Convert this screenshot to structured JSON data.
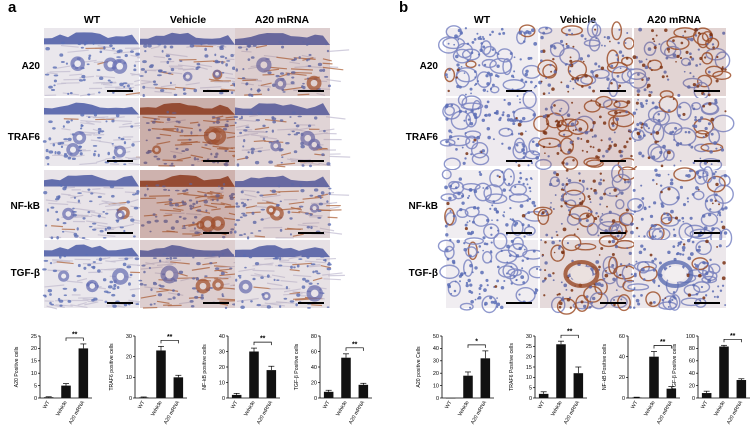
{
  "panel_a": {
    "letter": "a",
    "columns": [
      "WT",
      "Vehicle",
      "A20 mRNA"
    ],
    "rows": [
      "A20",
      "TRAF6",
      "NF-kB",
      "TGF-β"
    ]
  },
  "panel_b": {
    "letter": "b",
    "columns": [
      "WT",
      "Vehicle",
      "A20 mRNA"
    ],
    "rows": [
      "A20",
      "TRAF6",
      "NF-kB",
      "TGF-β"
    ]
  },
  "colors": {
    "hematoxylin": "#5a6fb8",
    "dab": "#8b3a1e",
    "bar": "#111111"
  },
  "chart_data": [
    {
      "type": "bar",
      "categories": [
        "WT",
        "Vehicle",
        "A20 mRNA"
      ],
      "values": [
        0.3,
        5,
        20
      ],
      "errors": [
        0.2,
        0.8,
        1.8
      ],
      "ylabel": "A20 Positive cells",
      "ylim": [
        0,
        25
      ],
      "ticks": [
        0,
        5,
        10,
        15,
        20,
        25
      ],
      "sig": "**"
    },
    {
      "type": "bar",
      "categories": [
        "WT",
        "Vehicle",
        "A20 mRNA"
      ],
      "values": [
        0.3,
        23,
        10
      ],
      "errors": [
        0.2,
        2.0,
        1.0
      ],
      "ylabel": "TRAF6 positive cells",
      "ylim": [
        0,
        30
      ],
      "ticks": [
        0,
        10,
        20,
        30
      ],
      "sig": "**"
    },
    {
      "type": "bar",
      "categories": [
        "WT",
        "Vehicle",
        "A20 mRNA"
      ],
      "values": [
        2,
        30,
        18
      ],
      "errors": [
        1,
        2.2,
        2.5
      ],
      "ylabel": "NF-kB positive cells",
      "ylim": [
        0,
        40
      ],
      "ticks": [
        0,
        10,
        20,
        30,
        40
      ],
      "sig": "**"
    },
    {
      "type": "bar",
      "categories": [
        "WT",
        "Vehicle",
        "A20 mRNA"
      ],
      "values": [
        8,
        52,
        17
      ],
      "errors": [
        2,
        5,
        2
      ],
      "ylabel": "TGF-β Positive cells",
      "ylim": [
        0,
        80
      ],
      "ticks": [
        0,
        20,
        40,
        60,
        80
      ],
      "sig": "**"
    },
    {
      "type": "bar",
      "categories": [
        "WT",
        "Vehicle",
        "A20 mRNA"
      ],
      "values": [
        0,
        18,
        32
      ],
      "errors": [
        0,
        3,
        6
      ],
      "ylabel": "A20 positive Cells",
      "ylim": [
        0,
        50
      ],
      "ticks": [
        0,
        10,
        20,
        30,
        40,
        50
      ],
      "sig": "*"
    },
    {
      "type": "bar",
      "categories": [
        "WT",
        "Vehicle",
        "A20 mRNA"
      ],
      "values": [
        2,
        26,
        12
      ],
      "errors": [
        1,
        1.5,
        3
      ],
      "ylabel": "TRAF6 Positive cells",
      "ylim": [
        0,
        30
      ],
      "ticks": [
        0,
        5,
        10,
        15,
        20,
        25,
        30
      ],
      "sig": "**"
    },
    {
      "type": "bar",
      "categories": [
        "WT",
        "Vehicle",
        "A20 mRNA"
      ],
      "values": [
        0.5,
        40,
        9
      ],
      "errors": [
        0.3,
        5,
        2
      ],
      "ylabel": "NF-kB Positive cells",
      "ylim": [
        0,
        60
      ],
      "ticks": [
        0,
        20,
        40,
        60
      ],
      "sig": "**"
    },
    {
      "type": "bar",
      "categories": [
        "WT",
        "Vehicle",
        "A20 mRNA"
      ],
      "values": [
        8,
        83,
        29
      ],
      "errors": [
        3,
        2,
        2
      ],
      "ylabel": "TGF-β Positive cells",
      "ylim": [
        0,
        100
      ],
      "ticks": [
        0,
        20,
        40,
        60,
        80,
        100
      ],
      "sig": "**"
    }
  ]
}
